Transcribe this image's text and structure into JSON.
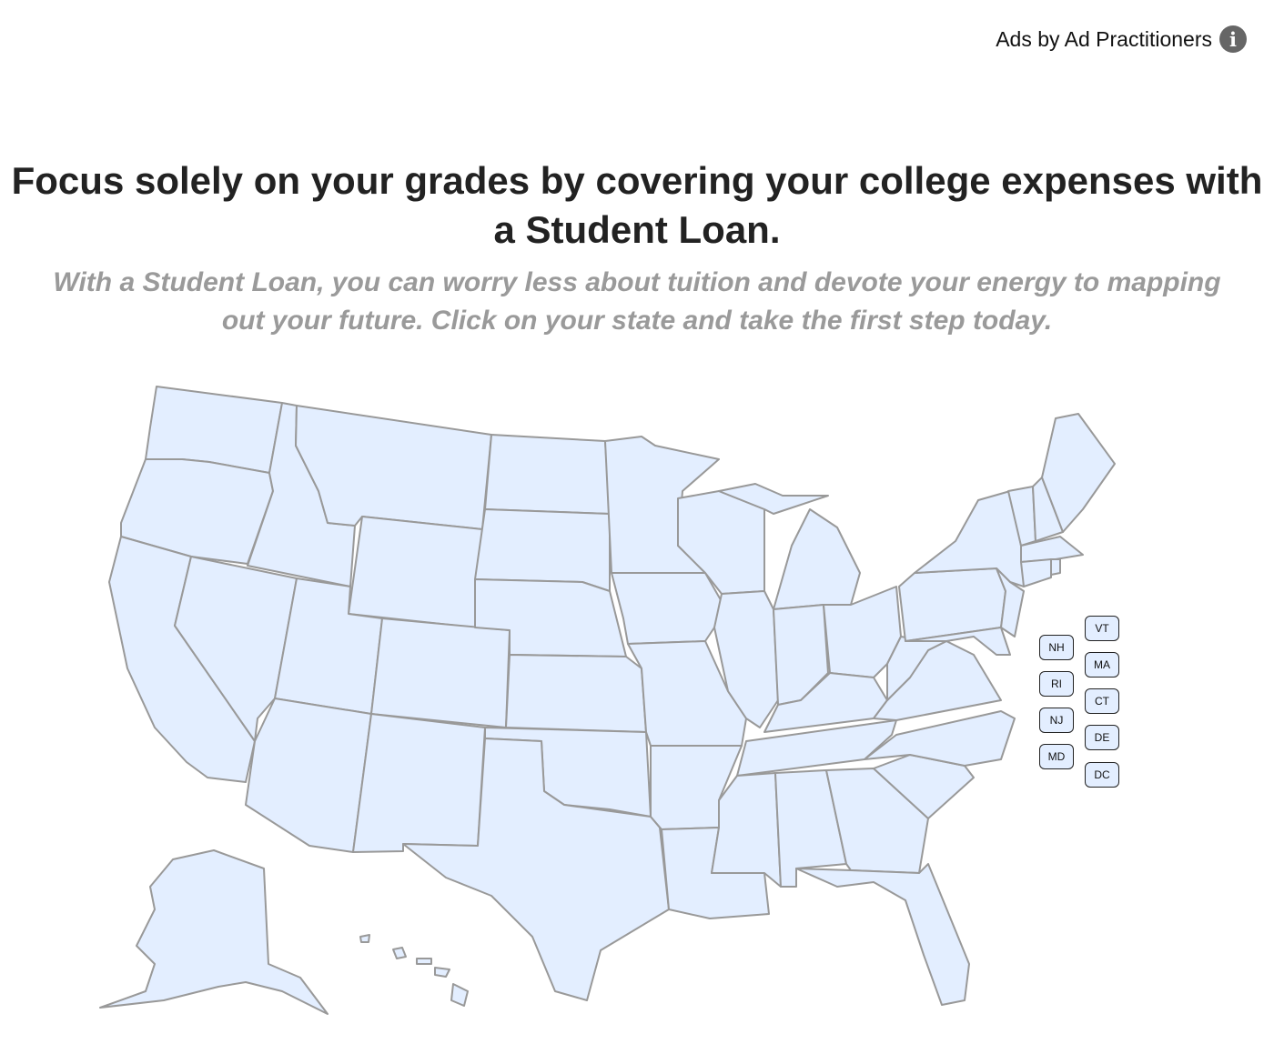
{
  "ad_label": "Ads by Ad Practitioners",
  "info_icon": "info-circle-icon",
  "headline": "Focus solely on your grades by covering your college expenses with a Student Loan.",
  "subheadline": "With a Student Loan, you can worry less about tuition and devote your energy to mapping out your future. Click on your state and take the first step today.",
  "map_colors": {
    "fill": "#e3eeff",
    "stroke": "#999999"
  },
  "small_state_buttons": [
    "NH",
    "RI",
    "NJ",
    "MD",
    "VT",
    "MA",
    "CT",
    "DE",
    "DC"
  ]
}
